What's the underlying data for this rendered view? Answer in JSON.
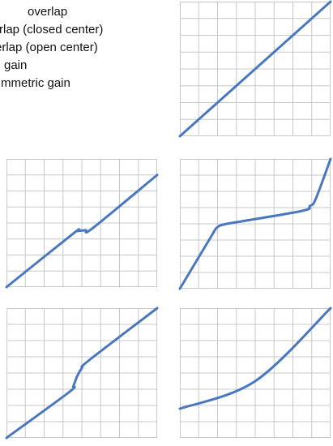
{
  "legend": {
    "items": [
      "overlap",
      "rlap (closed center)",
      "erlap (open center)",
      "gain",
      "mmetric gain"
    ]
  },
  "colors": {
    "line": "#4a78c0",
    "grid": "#c8c8c8",
    "frame": "#c8c8c8",
    "text": "#111111",
    "background": "#ffffff"
  },
  "chart_data": [
    {
      "type": "line",
      "panel": "top-right",
      "grid": true,
      "xlim": [
        0,
        8
      ],
      "ylim": [
        0,
        8
      ],
      "series": [
        {
          "x": [
            0,
            8
          ],
          "y": [
            0,
            8
          ]
        }
      ]
    },
    {
      "type": "line",
      "panel": "middle-left",
      "grid": true,
      "xlim": [
        0,
        8
      ],
      "ylim": [
        0,
        8
      ],
      "series": [
        {
          "x": [
            0,
            3.5,
            3.8,
            4.2,
            4.6,
            8
          ],
          "y": [
            0,
            3.3,
            3.5,
            3.55,
            3.7,
            7
          ]
        }
      ]
    },
    {
      "type": "line",
      "panel": "middle-right",
      "grid": true,
      "xlim": [
        0,
        8
      ],
      "ylim": [
        0,
        8
      ],
      "series": [
        {
          "x": [
            0,
            1.6,
            2.0,
            2.5,
            3.0,
            6.5,
            6.9,
            7.2,
            8
          ],
          "y": [
            0,
            3.1,
            3.8,
            4.0,
            4.1,
            4.8,
            5.1,
            5.5,
            8
          ]
        }
      ]
    },
    {
      "type": "line",
      "panel": "bottom-left",
      "grid": true,
      "xlim": [
        0,
        8
      ],
      "ylim": [
        0,
        8
      ],
      "series": [
        {
          "x": [
            0,
            3.3,
            3.55,
            3.75,
            4.0,
            4.4,
            8
          ],
          "y": [
            0,
            2.8,
            3.2,
            3.8,
            4.3,
            4.8,
            8
          ]
        }
      ]
    },
    {
      "type": "line",
      "panel": "bottom-right",
      "grid": true,
      "xlim": [
        0,
        8
      ],
      "ylim": [
        0,
        8
      ],
      "series": [
        {
          "x": [
            0,
            4,
            8
          ],
          "y": [
            1.8,
            3.5,
            8
          ]
        }
      ]
    }
  ]
}
